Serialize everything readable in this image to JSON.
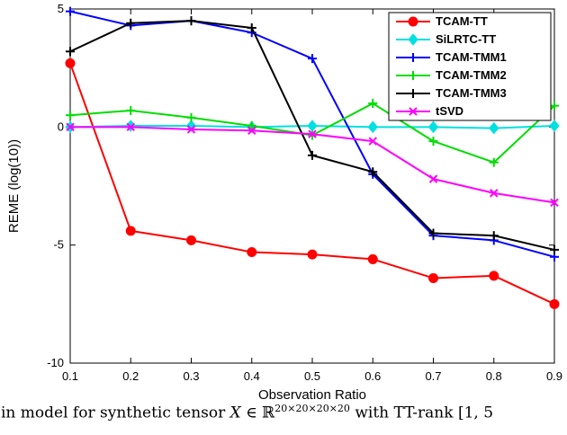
{
  "caption": {
    "part1": "in model for synthetic tensor ",
    "tensor_symbol": "X",
    "part2": " ∈ ℝ",
    "superscript": "20×20×20×20",
    "part3": " with TT-rank [1, 5"
  },
  "chart_data": {
    "type": "line",
    "title": "",
    "xlabel": "Observation Ratio",
    "ylabel": "REME (log(10))",
    "x": [
      0.1,
      0.2,
      0.3,
      0.4,
      0.5,
      0.6,
      0.7,
      0.8,
      0.9
    ],
    "xlim": [
      0.1,
      0.9
    ],
    "ylim": [
      -10,
      5
    ],
    "xticks": [
      0.1,
      0.2,
      0.3,
      0.4,
      0.5,
      0.6,
      0.7,
      0.8,
      0.9
    ],
    "yticks": [
      -10,
      -5,
      0,
      5
    ],
    "grid": false,
    "legend_position": "top-right",
    "series": [
      {
        "name": "TCAM-TT",
        "color": "#ff0000",
        "marker": "circle",
        "values": [
          2.7,
          -4.4,
          -4.8,
          -5.3,
          -5.4,
          -5.6,
          -6.4,
          -6.3,
          -7.5
        ]
      },
      {
        "name": "SiLRTC-TT",
        "color": "#00e0e0",
        "marker": "diamond",
        "values": [
          0.0,
          0.05,
          0.05,
          0.0,
          0.05,
          0.0,
          0.0,
          -0.05,
          0.05
        ]
      },
      {
        "name": "TCAM-TMM1",
        "color": "#0000ff",
        "marker": "plus",
        "values": [
          4.9,
          4.3,
          4.5,
          4.0,
          2.9,
          -2.0,
          -4.6,
          -4.8,
          -5.5
        ]
      },
      {
        "name": "TCAM-TMM2",
        "color": "#00dd00",
        "marker": "plus",
        "values": [
          0.5,
          0.7,
          0.4,
          0.05,
          -0.35,
          1.0,
          -0.6,
          -1.5,
          0.9
        ]
      },
      {
        "name": "TCAM-TMM3",
        "color": "#000000",
        "marker": "plus",
        "values": [
          3.2,
          4.4,
          4.5,
          4.2,
          -1.2,
          -1.9,
          -4.5,
          -4.6,
          -5.2
        ]
      },
      {
        "name": "tSVD",
        "color": "#ff00ff",
        "marker": "x",
        "values": [
          0.0,
          0.0,
          -0.1,
          -0.15,
          -0.3,
          -0.6,
          -2.2,
          -2.8,
          -3.2
        ]
      }
    ]
  }
}
